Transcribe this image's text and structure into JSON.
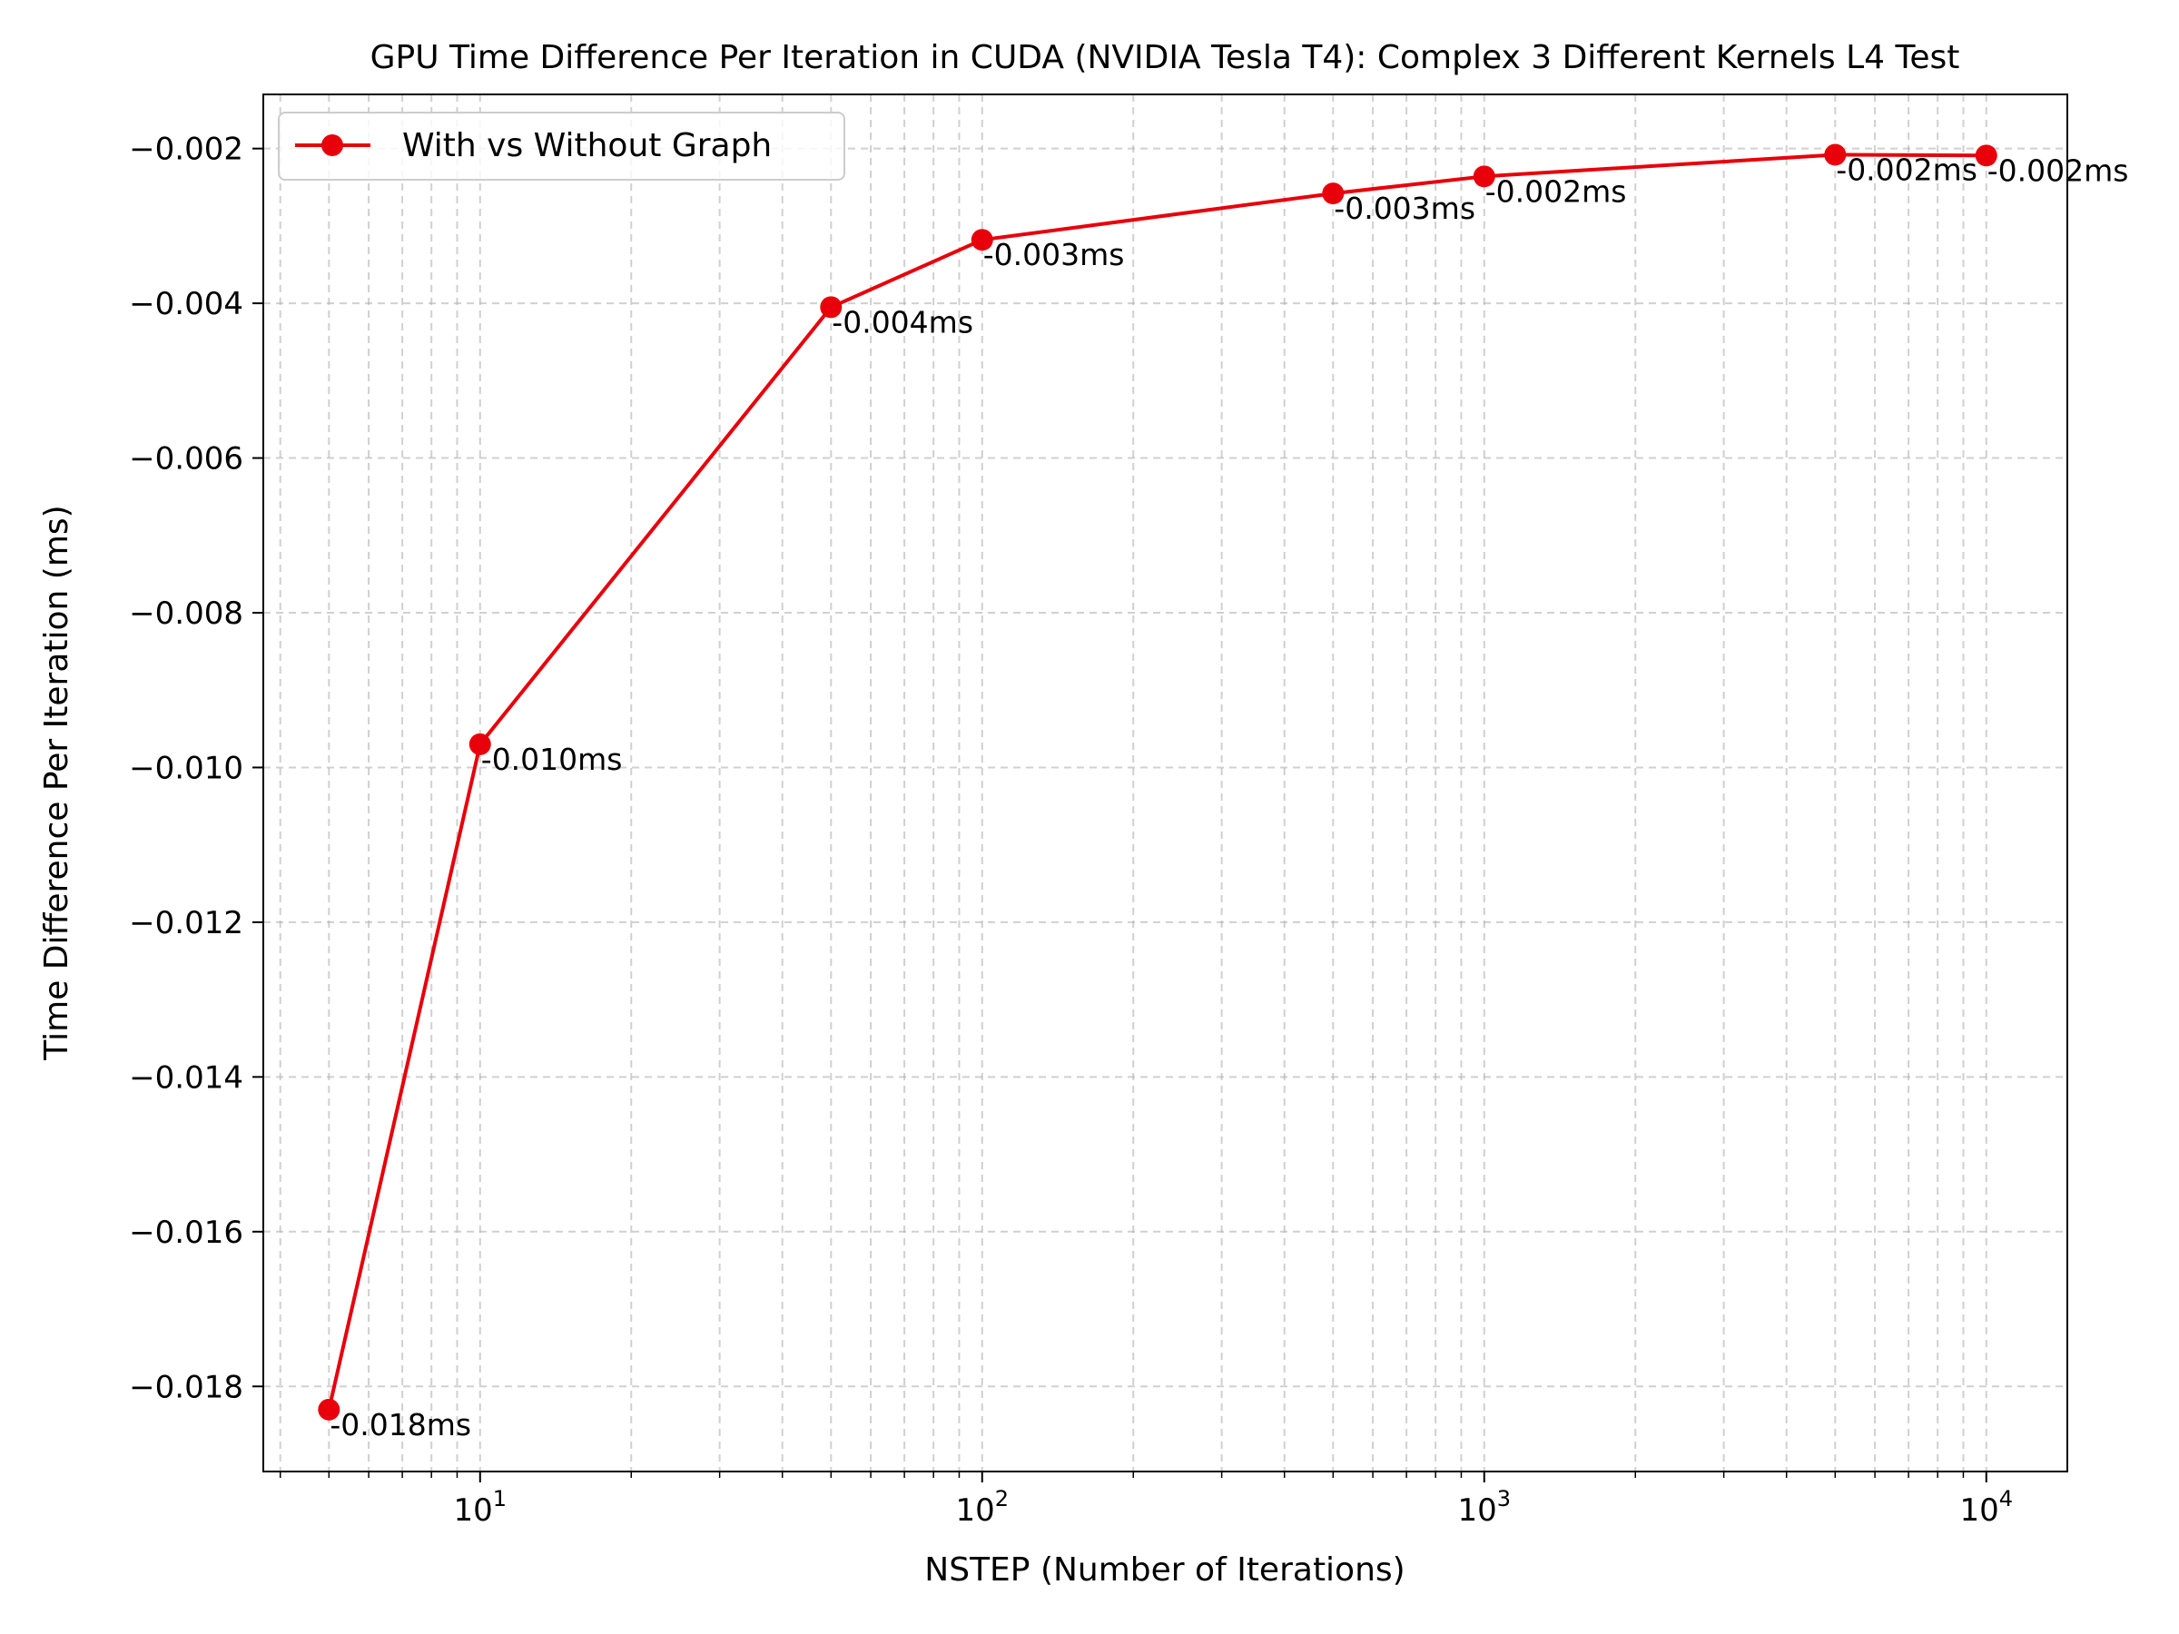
{
  "chart_data": {
    "type": "line",
    "title": "GPU Time Difference Per Iteration in CUDA (NVIDIA Tesla T4): Complex 3 Different Kernels L4 Test",
    "xlabel": "NSTEP (Number of Iterations)",
    "ylabel": "Time Difference Per Iteration (ms)",
    "xscale": "log",
    "xlim": [
      3.7,
      14500
    ],
    "ylim": [
      -0.0191,
      -0.0013
    ],
    "xticks": [
      {
        "value": 10,
        "base": "10",
        "exp": "1"
      },
      {
        "value": 100,
        "base": "10",
        "exp": "2"
      },
      {
        "value": 1000,
        "base": "10",
        "exp": "3"
      },
      {
        "value": 10000,
        "base": "10",
        "exp": "4"
      }
    ],
    "yticks": [
      {
        "value": -0.002,
        "label": "−0.002"
      },
      {
        "value": -0.004,
        "label": "−0.004"
      },
      {
        "value": -0.006,
        "label": "−0.006"
      },
      {
        "value": -0.008,
        "label": "−0.008"
      },
      {
        "value": -0.01,
        "label": "−0.010"
      },
      {
        "value": -0.012,
        "label": "−0.012"
      },
      {
        "value": -0.014,
        "label": "−0.014"
      },
      {
        "value": -0.016,
        "label": "−0.016"
      },
      {
        "value": -0.018,
        "label": "−0.018"
      }
    ],
    "grid": true,
    "legend_position": "top-left",
    "series": [
      {
        "name": "With vs Without Graph",
        "color": "#e8000b",
        "x": [
          5,
          10,
          50,
          100,
          500,
          1000,
          5000,
          10000
        ],
        "y": [
          -0.0183,
          -0.0097,
          -0.00405,
          -0.00318,
          -0.00258,
          -0.00236,
          -0.00208,
          -0.00209
        ],
        "labels": [
          "-0.018ms",
          "-0.010ms",
          "-0.004ms",
          "-0.003ms",
          "-0.003ms",
          "-0.002ms",
          "-0.002ms",
          "-0.002ms"
        ]
      }
    ]
  }
}
